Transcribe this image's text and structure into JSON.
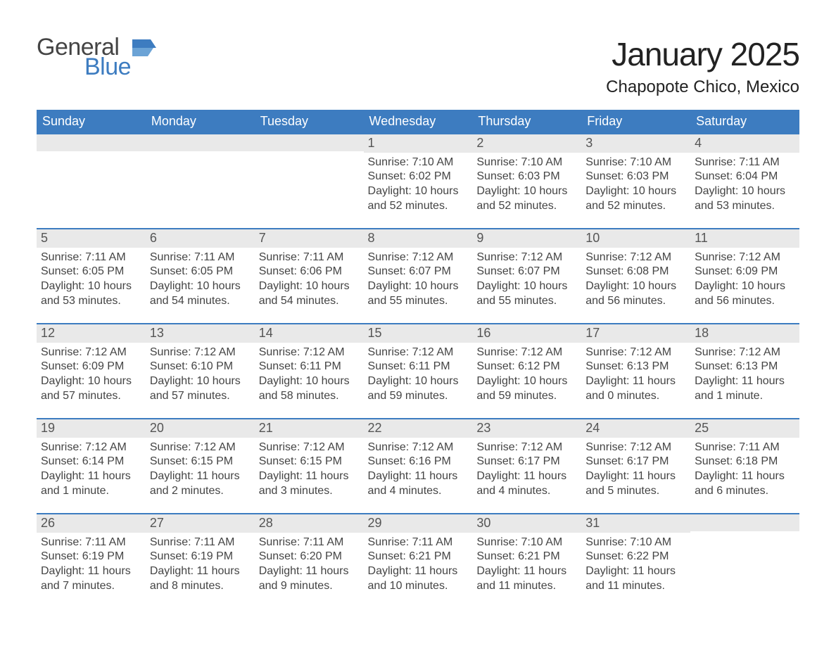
{
  "logo": {
    "word1": "General",
    "word2": "Blue",
    "icon_color": "#3d7cc0",
    "text_color_gray": "#444444"
  },
  "title": "January 2025",
  "location": "Chapopote Chico, Mexico",
  "styling": {
    "header_bg": "#3d7cc0",
    "header_text": "#ffffff",
    "daynum_bg": "#e9e9e9",
    "daynum_border": "#3d7cc0",
    "body_text": "#444444",
    "page_bg": "#ffffff",
    "title_fontsize": 46,
    "location_fontsize": 24,
    "th_fontsize": 18,
    "daynum_fontsize": 18,
    "body_fontsize": 16
  },
  "day_headers": [
    "Sunday",
    "Monday",
    "Tuesday",
    "Wednesday",
    "Thursday",
    "Friday",
    "Saturday"
  ],
  "weeks": [
    [
      null,
      null,
      null,
      {
        "n": "1",
        "sunrise": "Sunrise: 7:10 AM",
        "sunset": "Sunset: 6:02 PM",
        "daylight": "Daylight: 10 hours and 52 minutes."
      },
      {
        "n": "2",
        "sunrise": "Sunrise: 7:10 AM",
        "sunset": "Sunset: 6:03 PM",
        "daylight": "Daylight: 10 hours and 52 minutes."
      },
      {
        "n": "3",
        "sunrise": "Sunrise: 7:10 AM",
        "sunset": "Sunset: 6:03 PM",
        "daylight": "Daylight: 10 hours and 52 minutes."
      },
      {
        "n": "4",
        "sunrise": "Sunrise: 7:11 AM",
        "sunset": "Sunset: 6:04 PM",
        "daylight": "Daylight: 10 hours and 53 minutes."
      }
    ],
    [
      {
        "n": "5",
        "sunrise": "Sunrise: 7:11 AM",
        "sunset": "Sunset: 6:05 PM",
        "daylight": "Daylight: 10 hours and 53 minutes."
      },
      {
        "n": "6",
        "sunrise": "Sunrise: 7:11 AM",
        "sunset": "Sunset: 6:05 PM",
        "daylight": "Daylight: 10 hours and 54 minutes."
      },
      {
        "n": "7",
        "sunrise": "Sunrise: 7:11 AM",
        "sunset": "Sunset: 6:06 PM",
        "daylight": "Daylight: 10 hours and 54 minutes."
      },
      {
        "n": "8",
        "sunrise": "Sunrise: 7:12 AM",
        "sunset": "Sunset: 6:07 PM",
        "daylight": "Daylight: 10 hours and 55 minutes."
      },
      {
        "n": "9",
        "sunrise": "Sunrise: 7:12 AM",
        "sunset": "Sunset: 6:07 PM",
        "daylight": "Daylight: 10 hours and 55 minutes."
      },
      {
        "n": "10",
        "sunrise": "Sunrise: 7:12 AM",
        "sunset": "Sunset: 6:08 PM",
        "daylight": "Daylight: 10 hours and 56 minutes."
      },
      {
        "n": "11",
        "sunrise": "Sunrise: 7:12 AM",
        "sunset": "Sunset: 6:09 PM",
        "daylight": "Daylight: 10 hours and 56 minutes."
      }
    ],
    [
      {
        "n": "12",
        "sunrise": "Sunrise: 7:12 AM",
        "sunset": "Sunset: 6:09 PM",
        "daylight": "Daylight: 10 hours and 57 minutes."
      },
      {
        "n": "13",
        "sunrise": "Sunrise: 7:12 AM",
        "sunset": "Sunset: 6:10 PM",
        "daylight": "Daylight: 10 hours and 57 minutes."
      },
      {
        "n": "14",
        "sunrise": "Sunrise: 7:12 AM",
        "sunset": "Sunset: 6:11 PM",
        "daylight": "Daylight: 10 hours and 58 minutes."
      },
      {
        "n": "15",
        "sunrise": "Sunrise: 7:12 AM",
        "sunset": "Sunset: 6:11 PM",
        "daylight": "Daylight: 10 hours and 59 minutes."
      },
      {
        "n": "16",
        "sunrise": "Sunrise: 7:12 AM",
        "sunset": "Sunset: 6:12 PM",
        "daylight": "Daylight: 10 hours and 59 minutes."
      },
      {
        "n": "17",
        "sunrise": "Sunrise: 7:12 AM",
        "sunset": "Sunset: 6:13 PM",
        "daylight": "Daylight: 11 hours and 0 minutes."
      },
      {
        "n": "18",
        "sunrise": "Sunrise: 7:12 AM",
        "sunset": "Sunset: 6:13 PM",
        "daylight": "Daylight: 11 hours and 1 minute."
      }
    ],
    [
      {
        "n": "19",
        "sunrise": "Sunrise: 7:12 AM",
        "sunset": "Sunset: 6:14 PM",
        "daylight": "Daylight: 11 hours and 1 minute."
      },
      {
        "n": "20",
        "sunrise": "Sunrise: 7:12 AM",
        "sunset": "Sunset: 6:15 PM",
        "daylight": "Daylight: 11 hours and 2 minutes."
      },
      {
        "n": "21",
        "sunrise": "Sunrise: 7:12 AM",
        "sunset": "Sunset: 6:15 PM",
        "daylight": "Daylight: 11 hours and 3 minutes."
      },
      {
        "n": "22",
        "sunrise": "Sunrise: 7:12 AM",
        "sunset": "Sunset: 6:16 PM",
        "daylight": "Daylight: 11 hours and 4 minutes."
      },
      {
        "n": "23",
        "sunrise": "Sunrise: 7:12 AM",
        "sunset": "Sunset: 6:17 PM",
        "daylight": "Daylight: 11 hours and 4 minutes."
      },
      {
        "n": "24",
        "sunrise": "Sunrise: 7:12 AM",
        "sunset": "Sunset: 6:17 PM",
        "daylight": "Daylight: 11 hours and 5 minutes."
      },
      {
        "n": "25",
        "sunrise": "Sunrise: 7:11 AM",
        "sunset": "Sunset: 6:18 PM",
        "daylight": "Daylight: 11 hours and 6 minutes."
      }
    ],
    [
      {
        "n": "26",
        "sunrise": "Sunrise: 7:11 AM",
        "sunset": "Sunset: 6:19 PM",
        "daylight": "Daylight: 11 hours and 7 minutes."
      },
      {
        "n": "27",
        "sunrise": "Sunrise: 7:11 AM",
        "sunset": "Sunset: 6:19 PM",
        "daylight": "Daylight: 11 hours and 8 minutes."
      },
      {
        "n": "28",
        "sunrise": "Sunrise: 7:11 AM",
        "sunset": "Sunset: 6:20 PM",
        "daylight": "Daylight: 11 hours and 9 minutes."
      },
      {
        "n": "29",
        "sunrise": "Sunrise: 7:11 AM",
        "sunset": "Sunset: 6:21 PM",
        "daylight": "Daylight: 11 hours and 10 minutes."
      },
      {
        "n": "30",
        "sunrise": "Sunrise: 7:10 AM",
        "sunset": "Sunset: 6:21 PM",
        "daylight": "Daylight: 11 hours and 11 minutes."
      },
      {
        "n": "31",
        "sunrise": "Sunrise: 7:10 AM",
        "sunset": "Sunset: 6:22 PM",
        "daylight": "Daylight: 11 hours and 11 minutes."
      },
      null
    ]
  ]
}
